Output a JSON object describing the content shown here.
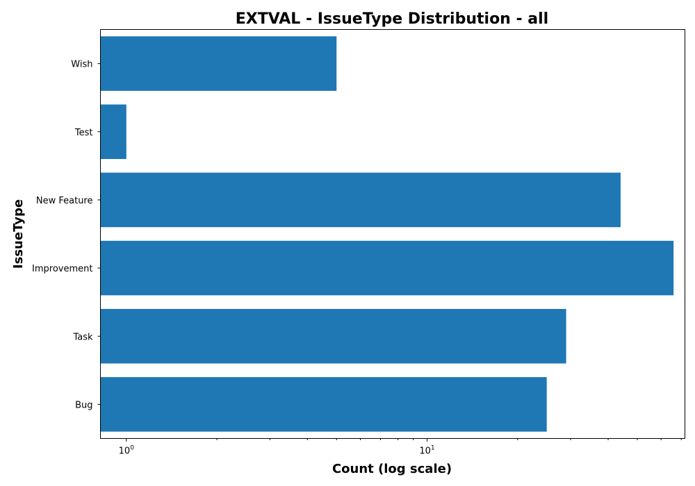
{
  "chart_data": {
    "type": "bar",
    "orientation": "horizontal",
    "title": "EXTVAL - IssueType Distribution - all",
    "xlabel": "Count (log scale)",
    "ylabel": "IssueType",
    "x_scale": "log",
    "xlim": [
      0.82,
      72
    ],
    "categories": [
      "Bug",
      "Task",
      "Improvement",
      "New Feature",
      "Test",
      "Wish"
    ],
    "values": [
      25,
      29,
      66,
      44,
      1,
      5
    ],
    "x_major_ticks": [
      {
        "value": 1,
        "base": "10",
        "exp": "0"
      },
      {
        "value": 10,
        "base": "10",
        "exp": "1"
      }
    ],
    "x_minor_ticks": [
      2,
      3,
      4,
      5,
      6,
      7,
      8,
      9,
      20,
      30,
      40,
      50,
      60,
      70
    ],
    "bar_color": "#1f77b4",
    "grid": false,
    "legend": "none"
  }
}
